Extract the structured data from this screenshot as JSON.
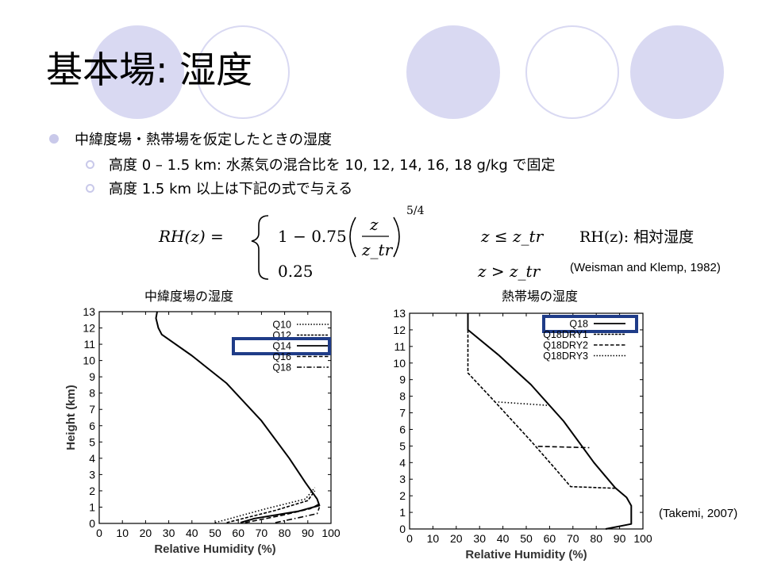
{
  "title": "基本場: 湿度",
  "bullets": {
    "main": "中緯度場・熱帯場を仮定したときの湿度",
    "sub1": "高度 0 – 1.5 km: 水蒸気の混合比を 10, 12, 14, 16, 18 g/kg で固定",
    "sub2": "高度 1.5 km 以上は下記の式で与える"
  },
  "formula": {
    "lhs": "RH(z) =",
    "case1_prefix": "1 − 0.75",
    "case1_num": "z",
    "case1_den": "z_tr",
    "case1_exp": "5/4",
    "case1_cond": "z ≤ z_tr",
    "case2": "0.25",
    "case2_cond": "z > z_tr",
    "note": "RH(z): 相対湿度"
  },
  "ref_weisman": "(Weisman and Klemp, 1982)",
  "ref_takemi": "(Takemi, 2007)",
  "chart_captions": {
    "left": "中緯度場の湿度",
    "right": "熱帯場の湿度"
  },
  "chart_data": [
    {
      "type": "line",
      "title": "中緯度場の湿度",
      "xlabel": "Relative Humidity (%)",
      "ylabel": "Height (km)",
      "xlim": [
        0,
        100
      ],
      "ylim": [
        0,
        13
      ],
      "xticks": [
        0,
        10,
        20,
        30,
        40,
        50,
        60,
        70,
        80,
        90,
        100
      ],
      "yticks": [
        0,
        1,
        2,
        3,
        4,
        5,
        6,
        7,
        8,
        9,
        10,
        11,
        12,
        13
      ],
      "legend_position": "top-right",
      "highlighted_series": "Q14",
      "series": [
        {
          "name": "Q10",
          "dash": "dotted",
          "points": [
            [
              50,
              0.05
            ],
            [
              72,
              0.9
            ],
            [
              89,
              1.5
            ],
            [
              93,
              2.2
            ]
          ]
        },
        {
          "name": "Q12",
          "dash": "short-dash",
          "points": [
            [
              55,
              0.05
            ],
            [
              76,
              0.8
            ],
            [
              90,
              1.4
            ],
            [
              93,
              2.0
            ]
          ]
        },
        {
          "name": "Q14",
          "dash": "solid",
          "points": [
            [
              25,
              13
            ],
            [
              24.5,
              12.6
            ],
            [
              25.5,
              12
            ],
            [
              27,
              11.6
            ],
            [
              40,
              10.3
            ],
            [
              55,
              8.6
            ],
            [
              70,
              6.3
            ],
            [
              82,
              4.0
            ],
            [
              89,
              2.5
            ],
            [
              94,
              1.5
            ],
            [
              95,
              1.1
            ],
            [
              86,
              0.75
            ],
            [
              67,
              0.3
            ],
            [
              61,
              0.05
            ]
          ]
        },
        {
          "name": "Q16",
          "dash": "dash",
          "points": [
            [
              63,
              0.05
            ],
            [
              79,
              0.5
            ],
            [
              91,
              0.9
            ],
            [
              95,
              1.2
            ]
          ]
        },
        {
          "name": "Q18",
          "dash": "dash-dot",
          "points": [
            [
              76,
              0.05
            ],
            [
              86,
              0.35
            ],
            [
              94,
              0.6
            ],
            [
              95,
              1.0
            ]
          ]
        }
      ]
    },
    {
      "type": "line",
      "title": "熱帯場の湿度",
      "xlabel": "Relative Humidity (%)",
      "ylabel": "",
      "xlim": [
        0,
        100
      ],
      "ylim": [
        0,
        13
      ],
      "xticks": [
        0,
        10,
        20,
        30,
        40,
        50,
        60,
        70,
        80,
        90,
        100
      ],
      "yticks": [
        0,
        1,
        2,
        3,
        4,
        5,
        6,
        7,
        8,
        9,
        10,
        11,
        12,
        13
      ],
      "legend_position": "top-right",
      "highlighted_series": "Q18",
      "series": [
        {
          "name": "Q18",
          "dash": "solid",
          "points": [
            [
              25,
              13
            ],
            [
              25,
              12
            ],
            [
              38,
              10.5
            ],
            [
              52,
              8.7
            ],
            [
              66,
              6.5
            ],
            [
              79,
              4.0
            ],
            [
              88,
              2.5
            ],
            [
              93,
              1.9
            ],
            [
              95,
              1.4
            ],
            [
              95,
              0.3
            ],
            [
              84,
              0
            ]
          ]
        },
        {
          "name": "Q18DRY1",
          "dash": "short-dash",
          "points": [
            [
              25,
              12
            ],
            [
              25,
              9.4
            ],
            [
              37,
              7.6
            ],
            [
              52,
              5.3
            ],
            [
              62,
              3.7
            ],
            [
              69,
              2.55
            ],
            [
              88,
              2.45
            ]
          ]
        },
        {
          "name": "Q18DRY2",
          "dash": "dash",
          "points": [
            [
              55,
              4.98
            ],
            [
              77,
              4.9
            ]
          ]
        },
        {
          "name": "Q18DRY3",
          "dash": "dotted",
          "points": [
            [
              38,
              7.65
            ],
            [
              59,
              7.45
            ]
          ]
        }
      ]
    }
  ]
}
